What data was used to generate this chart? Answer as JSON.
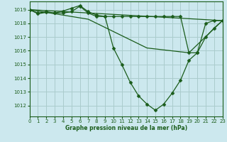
{
  "title": "Graphe pression niveau de la mer (hPa)",
  "bg_color": "#cce8ee",
  "grid_color": "#aacccc",
  "line_color": "#1a5c1a",
  "xlim": [
    0,
    23
  ],
  "ylim": [
    1011.2,
    1019.6
  ],
  "yticks": [
    1012,
    1013,
    1014,
    1015,
    1016,
    1017,
    1018,
    1019
  ],
  "xticks": [
    0,
    1,
    2,
    3,
    4,
    5,
    6,
    7,
    8,
    9,
    10,
    11,
    12,
    13,
    14,
    15,
    16,
    17,
    18,
    19,
    20,
    21,
    22,
    23
  ],
  "series": [
    {
      "x": [
        0,
        1,
        2,
        3,
        4,
        5,
        6,
        7,
        8,
        9,
        10,
        11,
        12,
        13,
        14,
        15,
        16,
        17,
        18,
        19,
        20,
        21,
        22,
        23
      ],
      "y": [
        1019.0,
        1018.7,
        1018.8,
        1018.75,
        1018.75,
        1018.85,
        1019.25,
        1018.75,
        1018.5,
        1018.5,
        1016.2,
        1015.0,
        1013.7,
        1012.7,
        1012.1,
        1011.65,
        1012.1,
        1012.9,
        1013.85,
        1015.3,
        1015.85,
        1017.0,
        1017.65,
        1018.2
      ],
      "marker": "D",
      "markersize": 2.5,
      "lw": 0.9
    },
    {
      "x": [
        0,
        1,
        2,
        3,
        4,
        5,
        6,
        7,
        8,
        9,
        10,
        11,
        12,
        13,
        14,
        15,
        16,
        17,
        18,
        19,
        20,
        21,
        22,
        23
      ],
      "y": [
        1019.0,
        1018.75,
        1018.85,
        1018.75,
        1018.9,
        1019.1,
        1019.3,
        1018.85,
        1018.6,
        1018.5,
        1018.5,
        1018.5,
        1018.5,
        1018.5,
        1018.5,
        1018.5,
        1018.5,
        1018.5,
        1018.5,
        1015.85,
        1015.85,
        1018.0,
        1018.2,
        1018.2
      ],
      "marker": "D",
      "markersize": 2.5,
      "lw": 0.9
    },
    {
      "x": [
        0,
        23
      ],
      "y": [
        1019.0,
        1018.2
      ],
      "marker": null,
      "markersize": 0,
      "lw": 0.9
    },
    {
      "x": [
        0,
        7,
        9,
        14,
        19,
        23
      ],
      "y": [
        1019.0,
        1018.3,
        1017.7,
        1016.2,
        1015.85,
        1018.2
      ],
      "marker": null,
      "markersize": 0,
      "lw": 0.9
    }
  ]
}
